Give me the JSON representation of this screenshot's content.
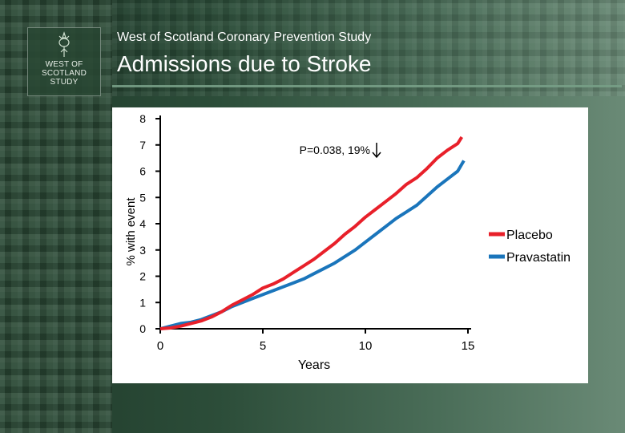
{
  "header": {
    "subtitle": "West of Scotland Coronary Prevention Study",
    "title": "Admissions due to Stroke",
    "logo_text": "WEST OF\nSCOTLAND\nSTUDY"
  },
  "colors": {
    "placebo": "#e8202a",
    "pravastatin": "#1a75bb",
    "axis": "#000000"
  },
  "chart_data": {
    "type": "line",
    "xlabel": "Years",
    "ylabel": "% with event",
    "xlim": [
      0,
      15
    ],
    "ylim": [
      0,
      8
    ],
    "xticks": [
      0,
      5,
      10,
      15
    ],
    "yticks": [
      0,
      1,
      2,
      3,
      4,
      5,
      6,
      7,
      8
    ],
    "grid": false,
    "legend_position": "right",
    "annotation": "P=0.038,  19%",
    "annotation_icon": "down-arrow-icon",
    "series": [
      {
        "name": "Placebo",
        "color": "#e8202a",
        "points": [
          [
            0,
            0
          ],
          [
            0.5,
            0.03
          ],
          [
            1,
            0.1
          ],
          [
            1.5,
            0.2
          ],
          [
            2,
            0.3
          ],
          [
            2.5,
            0.45
          ],
          [
            3,
            0.65
          ],
          [
            3.5,
            0.9
          ],
          [
            4,
            1.1
          ],
          [
            4.5,
            1.3
          ],
          [
            5,
            1.55
          ],
          [
            5.5,
            1.7
          ],
          [
            6,
            1.9
          ],
          [
            6.5,
            2.15
          ],
          [
            7,
            2.4
          ],
          [
            7.5,
            2.65
          ],
          [
            8,
            2.95
          ],
          [
            8.5,
            3.25
          ],
          [
            9,
            3.6
          ],
          [
            9.5,
            3.9
          ],
          [
            10,
            4.25
          ],
          [
            10.5,
            4.55
          ],
          [
            11,
            4.85
          ],
          [
            11.5,
            5.15
          ],
          [
            12,
            5.5
          ],
          [
            12.5,
            5.75
          ],
          [
            13,
            6.1
          ],
          [
            13.5,
            6.5
          ],
          [
            14,
            6.8
          ],
          [
            14.5,
            7.05
          ],
          [
            14.7,
            7.3
          ]
        ]
      },
      {
        "name": "Pravastatin",
        "color": "#1a75bb",
        "points": [
          [
            0,
            0
          ],
          [
            0.5,
            0.1
          ],
          [
            1,
            0.2
          ],
          [
            1.5,
            0.25
          ],
          [
            2,
            0.35
          ],
          [
            2.5,
            0.5
          ],
          [
            3,
            0.65
          ],
          [
            3.5,
            0.85
          ],
          [
            4,
            1.0
          ],
          [
            4.5,
            1.15
          ],
          [
            5,
            1.3
          ],
          [
            5.5,
            1.45
          ],
          [
            6,
            1.6
          ],
          [
            6.5,
            1.75
          ],
          [
            7,
            1.9
          ],
          [
            7.5,
            2.1
          ],
          [
            8,
            2.3
          ],
          [
            8.5,
            2.5
          ],
          [
            9,
            2.75
          ],
          [
            9.5,
            3.0
          ],
          [
            10,
            3.3
          ],
          [
            10.5,
            3.6
          ],
          [
            11,
            3.9
          ],
          [
            11.5,
            4.2
          ],
          [
            12,
            4.45
          ],
          [
            12.5,
            4.7
          ],
          [
            13,
            5.05
          ],
          [
            13.5,
            5.4
          ],
          [
            14,
            5.7
          ],
          [
            14.5,
            6.0
          ],
          [
            14.8,
            6.4
          ]
        ]
      }
    ]
  }
}
